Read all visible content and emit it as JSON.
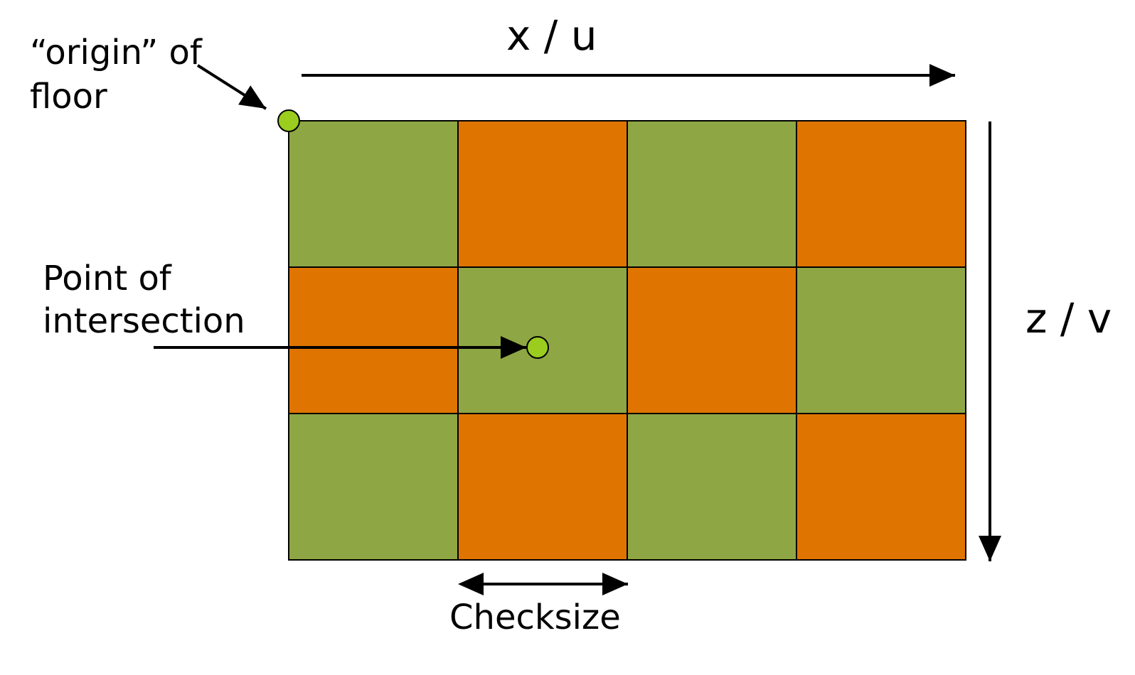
{
  "labels": {
    "x_axis": "x / u",
    "z_axis": "z / v",
    "origin_line1": "“origin” of",
    "origin_line2": "floor",
    "intersection_line1": "Point of",
    "intersection_line2": "intersection",
    "checksize": "Checksize"
  },
  "grid": {
    "rows": 3,
    "cols": 4,
    "pattern": [
      [
        "green",
        "orange",
        "green",
        "orange"
      ],
      [
        "orange",
        "green",
        "orange",
        "green"
      ],
      [
        "green",
        "orange",
        "green",
        "orange"
      ]
    ]
  },
  "colors": {
    "green": "#8ea644",
    "orange": "#df7500",
    "marker": "#9acd1e",
    "line": "#000000"
  }
}
